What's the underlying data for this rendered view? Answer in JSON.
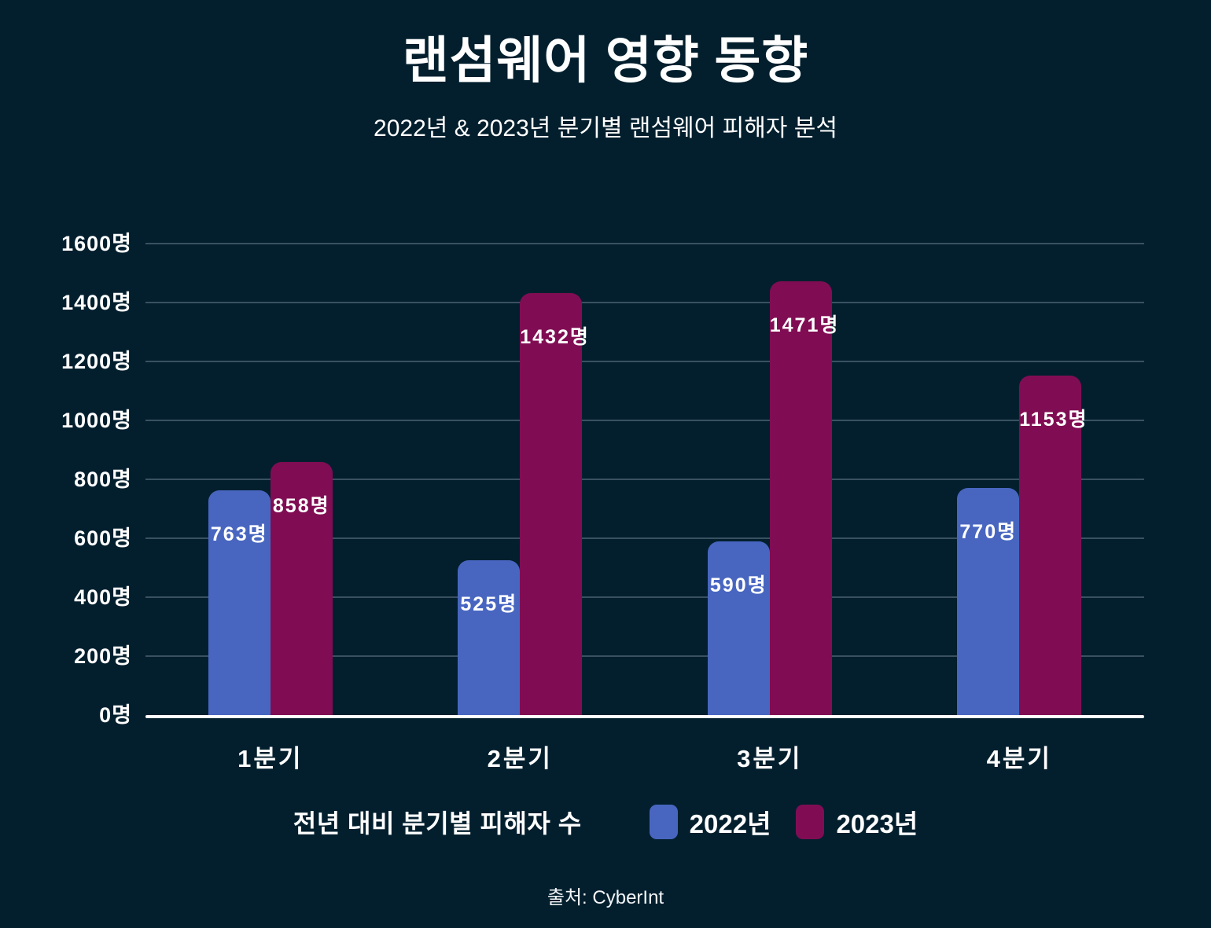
{
  "header": {
    "title": "랜섬웨어 영향 동향",
    "subtitle": "2022년 & 2023년 분기별 랜섬웨어 피해자 분석"
  },
  "chart_data": {
    "type": "bar",
    "title": "랜섬웨어 영향 동향",
    "subtitle": "2022년 & 2023년 분기별 랜섬웨어 피해자 분석",
    "categories": [
      "1분기",
      "2분기",
      "3분기",
      "4분기"
    ],
    "series": [
      {
        "name": "2022년",
        "color": "#4866c0",
        "values": [
          763,
          525,
          590,
          770
        ]
      },
      {
        "name": "2023년",
        "color": "#800d53",
        "values": [
          858,
          1432,
          1471,
          1153
        ]
      }
    ],
    "value_labels": [
      [
        "763명",
        "525명",
        "590명",
        "770명"
      ],
      [
        "858명",
        "1432명",
        "1471명",
        "1153명"
      ]
    ],
    "unit": "명",
    "y_ticks": [
      0,
      200,
      400,
      600,
      800,
      1000,
      1200,
      1400,
      1600
    ],
    "y_tick_labels": [
      "0명",
      "200명",
      "400명",
      "600명",
      "800명",
      "1000명",
      "1200명",
      "1400명",
      "1600명"
    ],
    "ylim": [
      0,
      1600
    ],
    "xlabel": "",
    "ylabel": "",
    "grid": true,
    "legend_position": "bottom"
  },
  "legend": {
    "label": "전년 대비 분기별 피해자 수",
    "items": [
      {
        "label": "2022년",
        "color": "#4866c0"
      },
      {
        "label": "2023년",
        "color": "#800d53"
      }
    ]
  },
  "footer": {
    "source": "출처: CyberInt"
  },
  "colors": {
    "background": "#031f2e",
    "grid": "#3a5162",
    "axis": "#ffffff",
    "text": "#ffffff",
    "series_2022": "#4866c0",
    "series_2023": "#800d53"
  }
}
